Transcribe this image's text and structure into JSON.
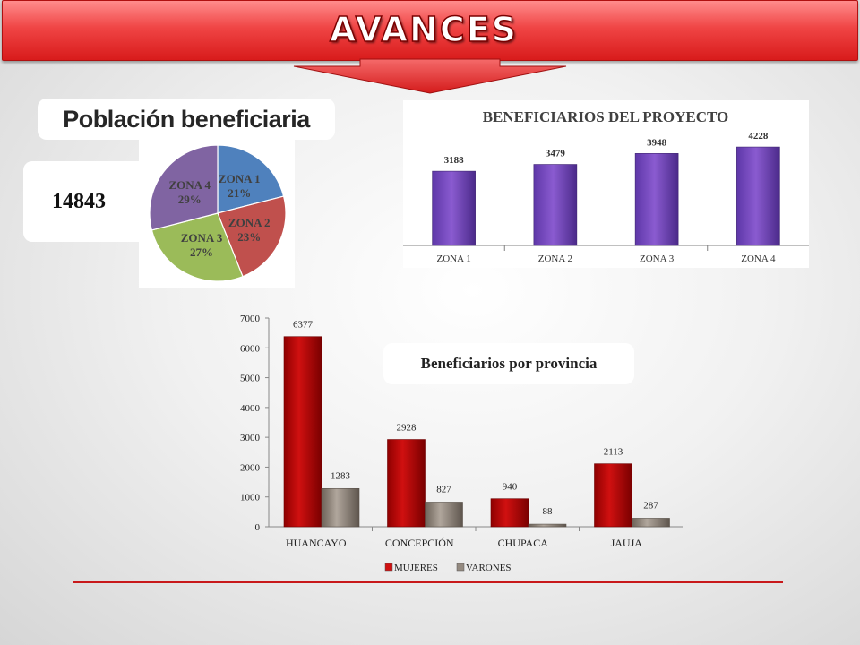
{
  "header": {
    "title": "AVANCES"
  },
  "poblacion": {
    "title": "Población beneficiaria",
    "total": "14843"
  },
  "provincia_title": "Beneficiarios por provincia",
  "colors": {
    "zona1": "#4f81bd",
    "zona2": "#c0504d",
    "zona3": "#9bbb59",
    "zona4": "#8064a2",
    "bar_purple": "#8a5bd0",
    "mujeres": "#d01010",
    "varones": "#948a80",
    "accent": "#c8191b"
  },
  "chart_data": [
    {
      "type": "pie",
      "categories": [
        "ZONA 1",
        "ZONA 2",
        "ZONA 3",
        "ZONA 4"
      ],
      "values": [
        21,
        23,
        27,
        29
      ],
      "labels": [
        "21%",
        "23%",
        "27%",
        "29%"
      ]
    },
    {
      "type": "bar",
      "title": "BENEFICIARIOS DEL PROYECTO",
      "categories": [
        "ZONA 1",
        "ZONA 2",
        "ZONA 3",
        "ZONA 4"
      ],
      "values": [
        3188,
        3479,
        3948,
        4228
      ],
      "ylim": [
        0,
        5000
      ]
    },
    {
      "type": "bar",
      "categories": [
        "HUANCAYO",
        "CONCEPCIÓN",
        "CHUPACA",
        "JAUJA"
      ],
      "series": [
        {
          "name": "MUJERES",
          "values": [
            6377,
            2928,
            940,
            2113
          ]
        },
        {
          "name": "VARONES",
          "values": [
            1283,
            827,
            88,
            287
          ]
        }
      ],
      "ylim": [
        0,
        7000
      ],
      "yticks": [
        0,
        1000,
        2000,
        3000,
        4000,
        5000,
        6000,
        7000
      ],
      "legend": "bottom"
    }
  ]
}
